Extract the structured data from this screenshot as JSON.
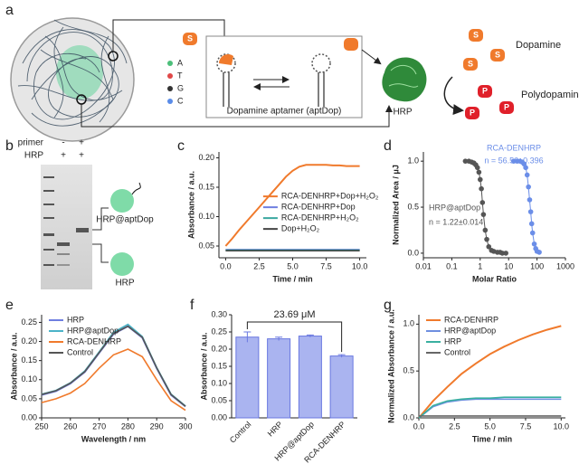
{
  "panel_labels": [
    "a",
    "b",
    "c",
    "d",
    "e",
    "f",
    "g"
  ],
  "diagram": {
    "bases": [
      "A",
      "T",
      "G",
      "C"
    ],
    "aptamer_label": "Dopamine aptamer (aptDop)",
    "enzyme": "HRP",
    "substrate": "Dopamine",
    "product": "Polydopamine",
    "substrate_icon": "S",
    "product_icon": "P"
  },
  "gel": {
    "row_labels": [
      "primer",
      "HRP"
    ],
    "lane1": [
      "-",
      "+"
    ],
    "lane2": [
      "+",
      "+"
    ],
    "bands": [
      "HRP@aptDop",
      "HRP"
    ]
  },
  "chart_data": [
    {
      "type": "line",
      "xlabel": "Time / min",
      "ylabel": "Absorbance / a.u.",
      "legend": "right",
      "x": [
        0,
        0.5,
        1,
        1.5,
        2,
        2.5,
        3,
        3.5,
        4,
        4.5,
        5,
        5.5,
        6,
        6.5,
        7,
        7.5,
        8,
        8.5,
        9,
        9.5,
        10
      ],
      "series": [
        {
          "name": "RCA-DENHRP+Dop+H₂O₂",
          "color": "#f07a2c",
          "values": [
            0.05,
            0.063,
            0.077,
            0.09,
            0.103,
            0.116,
            0.129,
            0.142,
            0.155,
            0.168,
            0.178,
            0.185,
            0.188,
            0.188,
            0.188,
            0.188,
            0.187,
            0.187,
            0.186,
            0.186,
            0.186
          ]
        },
        {
          "name": "RCA-DENHRP+Dop",
          "color": "#6f7fe0",
          "values": [
            0.044,
            0.044,
            0.044,
            0.044,
            0.044,
            0.044,
            0.044,
            0.044,
            0.044,
            0.044,
            0.044,
            0.044,
            0.044,
            0.044,
            0.044,
            0.044,
            0.044,
            0.044,
            0.044,
            0.044,
            0.044
          ]
        },
        {
          "name": "RCA-DENHRP+H₂O₂",
          "color": "#3aa7a0",
          "values": [
            0.043,
            0.043,
            0.043,
            0.043,
            0.043,
            0.043,
            0.043,
            0.043,
            0.043,
            0.043,
            0.043,
            0.043,
            0.043,
            0.043,
            0.043,
            0.043,
            0.043,
            0.043,
            0.043,
            0.043,
            0.043
          ]
        },
        {
          "name": "Dop+H₂O₂",
          "color": "#444444",
          "values": [
            0.042,
            0.042,
            0.042,
            0.042,
            0.042,
            0.042,
            0.042,
            0.042,
            0.042,
            0.042,
            0.042,
            0.042,
            0.042,
            0.042,
            0.042,
            0.042,
            0.042,
            0.042,
            0.042,
            0.042,
            0.042
          ]
        }
      ],
      "xlim": [
        -0.5,
        10.5
      ],
      "xticks": [
        {
          "value": 0,
          "label": "0.0"
        },
        2.5,
        {
          "value": 5,
          "label": "5.0"
        },
        7.5,
        {
          "value": 10,
          "label": "10.0"
        }
      ],
      "ylim": [
        0.03,
        0.21
      ],
      "yticks": [
        0.05,
        {
          "value": 0.1,
          "label": "0.10"
        },
        0.15,
        {
          "value": 0.2,
          "label": "0.20"
        }
      ]
    },
    {
      "type": "scatter",
      "xscale": "log",
      "xlabel": "Molar Ratio",
      "ylabel": "Normalized Area / μJ",
      "annotations": [
        "RCA-DENHRP",
        "n = 56.56±0.396",
        "HRP@aptDop",
        "n = 1.22±0.014"
      ],
      "series": [
        {
          "name": "HRP@aptDop",
          "color": "#555555",
          "x": [
            0.3,
            0.4,
            0.5,
            0.6,
            0.7,
            0.8,
            0.9,
            1.0,
            1.1,
            1.2,
            1.3,
            1.5,
            1.7,
            2,
            2.5,
            3,
            4,
            5,
            6,
            8
          ],
          "values": [
            1.0,
            1.0,
            0.99,
            0.98,
            0.96,
            0.93,
            0.88,
            0.8,
            0.7,
            0.55,
            0.42,
            0.25,
            0.15,
            0.07,
            0.03,
            0.02,
            0.01,
            0.01,
            0.0,
            0.0
          ]
        },
        {
          "name": "RCA-DENHRP",
          "color": "#6b8ee8",
          "x": [
            15,
            20,
            25,
            30,
            35,
            40,
            45,
            50,
            55,
            60,
            65,
            70,
            80,
            90,
            100,
            120
          ],
          "values": [
            1.0,
            1.0,
            1.0,
            0.99,
            0.97,
            0.93,
            0.85,
            0.72,
            0.58,
            0.45,
            0.32,
            0.22,
            0.1,
            0.05,
            0.02,
            0.01
          ]
        }
      ],
      "xlim": [
        0.01,
        1000
      ],
      "xticks": [
        0.01,
        0.1,
        1,
        10,
        100,
        1000
      ],
      "ylim": [
        -0.05,
        1.1
      ],
      "yticks": [
        {
          "value": 0,
          "label": "0.0"
        },
        0.5,
        {
          "value": 1,
          "label": "1.0"
        }
      ]
    },
    {
      "type": "line",
      "xlabel": "Wavelength / nm",
      "ylabel": "Absorbance / a.u.",
      "legend": "upper left",
      "x": [
        250,
        255,
        260,
        265,
        270,
        275,
        280,
        285,
        290,
        295,
        300
      ],
      "series": [
        {
          "name": "HRP",
          "color": "#6f7fe0",
          "values": [
            0.06,
            0.07,
            0.09,
            0.12,
            0.17,
            0.22,
            0.24,
            0.21,
            0.13,
            0.06,
            0.03
          ]
        },
        {
          "name": "HRP@aptDop",
          "color": "#4bb3c8",
          "values": [
            0.062,
            0.072,
            0.092,
            0.123,
            0.173,
            0.224,
            0.245,
            0.213,
            0.132,
            0.062,
            0.031
          ]
        },
        {
          "name": "RCA-DENHRP",
          "color": "#f07a2c",
          "values": [
            0.04,
            0.05,
            0.065,
            0.09,
            0.13,
            0.165,
            0.18,
            0.16,
            0.1,
            0.045,
            0.02
          ]
        },
        {
          "name": "Control",
          "color": "#555555",
          "values": [
            0.061,
            0.071,
            0.091,
            0.121,
            0.171,
            0.221,
            0.24,
            0.211,
            0.131,
            0.061,
            0.03
          ]
        }
      ],
      "xlim": [
        250,
        300
      ],
      "xticks": [
        250,
        260,
        270,
        280,
        290,
        300
      ],
      "ylim": [
        0,
        0.27
      ],
      "yticks": [
        {
          "value": 0,
          "label": "0.00"
        },
        0.05,
        {
          "value": 0.1,
          "label": "0.10"
        },
        0.15,
        {
          "value": 0.2,
          "label": "0.20"
        },
        0.25
      ]
    },
    {
      "type": "bar",
      "ylabel": "Absorbance / a.u.",
      "annotations": [
        "23.69 μM"
      ],
      "color": "#aab4f0",
      "categories": [
        "Control",
        "HRP",
        "HRP@aptDop",
        "RCA-DENHRP"
      ],
      "values": [
        0.235,
        0.23,
        0.238,
        0.18
      ],
      "errors": [
        0.015,
        0.005,
        0.003,
        0.004
      ],
      "ylim": [
        0,
        0.3
      ],
      "yticks": [
        {
          "value": 0,
          "label": "0.00"
        },
        0.05,
        {
          "value": 0.1,
          "label": "0.10"
        },
        0.15,
        {
          "value": 0.2,
          "label": "0.20"
        },
        0.25,
        {
          "value": 0.3,
          "label": "0.30"
        }
      ]
    },
    {
      "type": "line",
      "xlabel": "Time / min",
      "ylabel": "Normalized Absorbance / a.u.",
      "legend": "upper left",
      "x": [
        0,
        1,
        2,
        3,
        4,
        5,
        6,
        7,
        8,
        9,
        10
      ],
      "series": [
        {
          "name": "RCA-DENHRP",
          "color": "#f07a2c",
          "values": [
            0,
            0.18,
            0.33,
            0.47,
            0.58,
            0.68,
            0.76,
            0.83,
            0.89,
            0.94,
            0.98
          ]
        },
        {
          "name": "HRP@aptDop",
          "color": "#6f8fe0",
          "values": [
            0,
            0.12,
            0.17,
            0.19,
            0.2,
            0.2,
            0.2,
            0.2,
            0.2,
            0.2,
            0.2
          ]
        },
        {
          "name": "HRP",
          "color": "#3ab0a0",
          "values": [
            0,
            0.13,
            0.18,
            0.2,
            0.21,
            0.21,
            0.22,
            0.22,
            0.22,
            0.22,
            0.22
          ]
        },
        {
          "name": "Control",
          "color": "#666666",
          "values": [
            0.02,
            0.02,
            0.02,
            0.02,
            0.02,
            0.02,
            0.02,
            0.02,
            0.02,
            0.02,
            0.02
          ]
        }
      ],
      "xlim": [
        0,
        10.3
      ],
      "xticks": [
        {
          "value": 0,
          "label": "0.0"
        },
        2.5,
        {
          "value": 5,
          "label": "5.0"
        },
        7.5,
        {
          "value": 10,
          "label": "10.0"
        }
      ],
      "ylim": [
        0,
        1.1
      ],
      "yticks": [
        {
          "value": 0,
          "label": "0.0"
        },
        0.5,
        {
          "value": 1,
          "label": "1.0"
        }
      ]
    }
  ]
}
